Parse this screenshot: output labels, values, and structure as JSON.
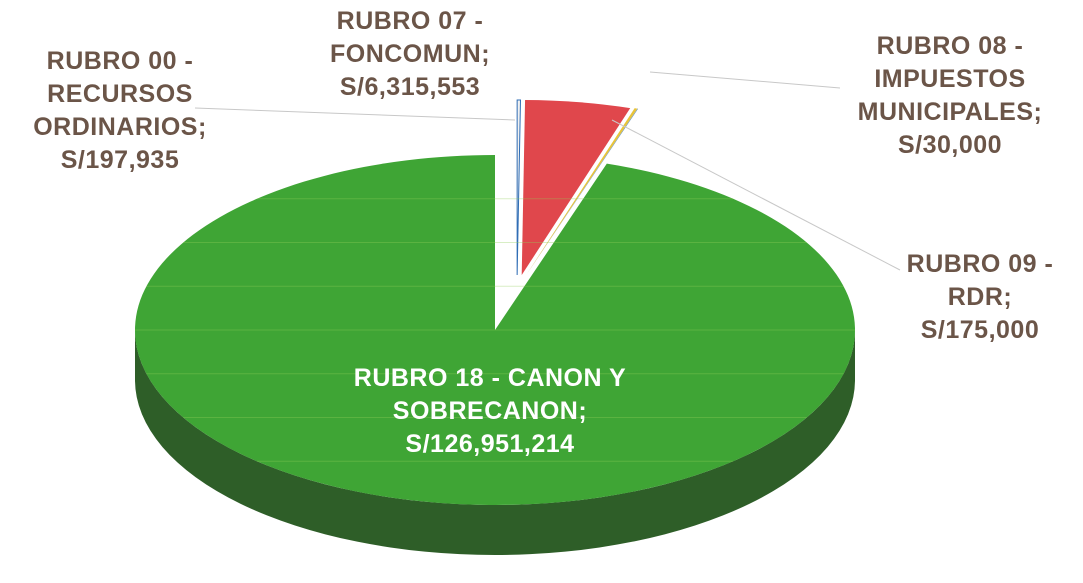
{
  "chart_data": {
    "type": "pie",
    "categories": [
      "RUBRO 00 - RECURSOS ORDINARIOS;",
      "RUBRO 07 - FONCOMUN;",
      "RUBRO 09 - RDR;",
      "RUBRO 08 - IMPUESTOS MUNICIPALES;",
      "RUBRO 18 - CANON Y SOBRECANON;"
    ],
    "values": [
      197935,
      6315553,
      175000,
      30000,
      126951214
    ],
    "value_labels": [
      "S/197,935",
      "S/6,315,553",
      "S/175,000",
      "S/30,000",
      "S/126,951,214"
    ],
    "colors": [
      "#f2f2f2",
      "#e0474c",
      "#e8c43a",
      "#2f6db5",
      "#3fa535"
    ]
  }
}
